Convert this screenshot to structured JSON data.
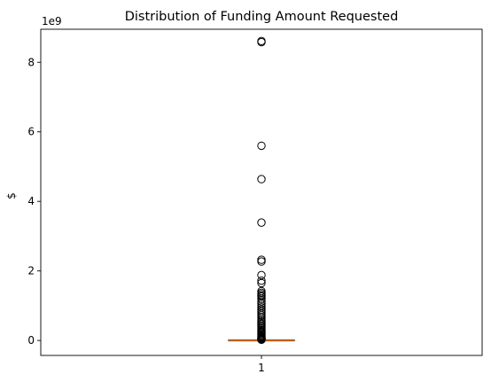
{
  "chart_data": {
    "type": "box",
    "title": "Distribution of Funding Amount Requested",
    "xlabel": "",
    "ylabel": "$",
    "y_offset_label": "1e9",
    "categories": [
      "1"
    ],
    "ylim": [
      -0.43,
      8.95
    ],
    "yticks": [
      0,
      2,
      4,
      6,
      8
    ],
    "ytick_labels": [
      "0",
      "2",
      "4",
      "6",
      "8"
    ],
    "grid": false,
    "box": {
      "q1": 0.0,
      "median": 0.003,
      "q3": 0.006,
      "whisker_low": 0.0,
      "whisker_high": 0.015
    },
    "outliers": [
      8.61,
      8.58,
      5.6,
      4.64,
      3.39,
      2.32,
      2.27,
      1.88,
      1.72,
      1.65,
      1.42,
      1.37,
      1.33,
      1.29,
      1.26,
      1.2,
      1.12,
      1.06,
      1.0,
      0.95,
      0.89,
      0.84,
      0.78,
      0.73,
      0.68,
      0.63,
      0.58,
      0.54,
      0.5,
      0.46,
      0.42,
      0.38,
      0.34,
      0.3,
      0.27,
      0.24,
      0.21,
      0.18,
      0.15,
      0.12,
      0.1,
      0.08,
      0.06,
      0.045,
      0.035,
      0.025,
      0.02
    ],
    "colors": {
      "box": "#000000",
      "median": "#ff7f0e",
      "outlier_edge": "#000000",
      "axes": "#000000"
    }
  }
}
